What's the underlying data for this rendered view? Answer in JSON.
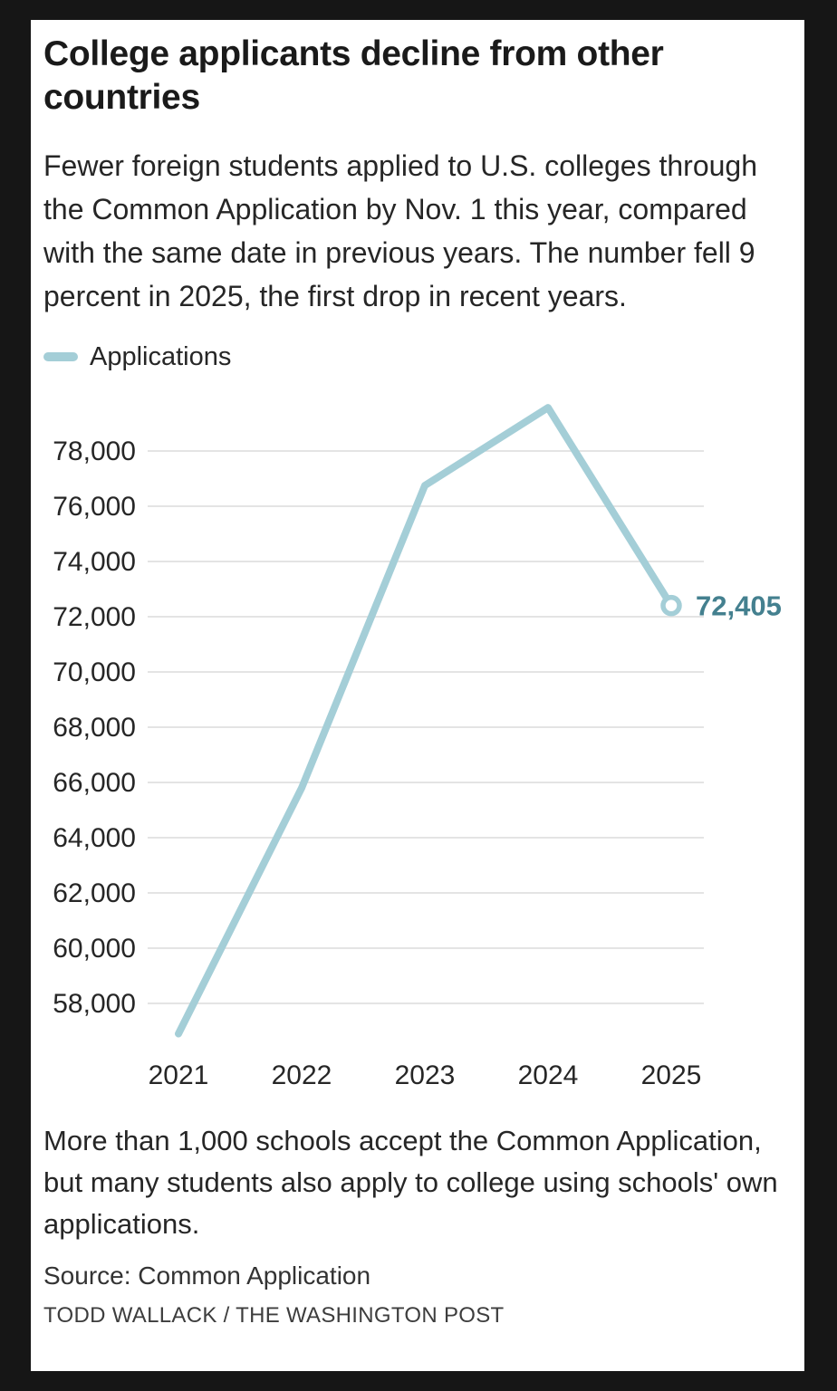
{
  "card": {
    "title": "College applicants decline from other countries",
    "description": "Fewer foreign students applied to U.S. colleges through the Common Application by Nov. 1 this year, compared with the same date in previous years. The number fell 9 percent in 2025, the first drop in recent years.",
    "note": "More than 1,000 schools accept the Common Application, but many students also apply to college using schools' own applications.",
    "source": "Source: Common Application",
    "credit": "TODD WALLACK / THE WASHINGTON POST"
  },
  "legend": {
    "label": "Applications",
    "swatch_color": "#a4ced7"
  },
  "colors": {
    "background": "#161616",
    "card": "#ffffff",
    "line": "#a4ced7",
    "accent": "#44808f",
    "grid": "#dcdcdc",
    "text": "#262626"
  },
  "chart_data": {
    "type": "line",
    "title": "College applicants decline from other countries",
    "xlabel": "",
    "ylabel": "",
    "x": [
      2021,
      2022,
      2023,
      2024,
      2025
    ],
    "series": [
      {
        "name": "Applications",
        "values": [
          56900,
          65800,
          76750,
          79570,
          72405
        ]
      }
    ],
    "end_label": "72,405",
    "y_ticks": [
      78000,
      76000,
      74000,
      72000,
      70000,
      68000,
      66000,
      64000,
      62000,
      60000,
      58000
    ],
    "ylim": [
      56500,
      80200
    ],
    "grid": true,
    "legend_position": "top-left",
    "line_color": "#a4ced7",
    "accent_color": "#44808f",
    "grid_color": "#dcdcdc"
  }
}
